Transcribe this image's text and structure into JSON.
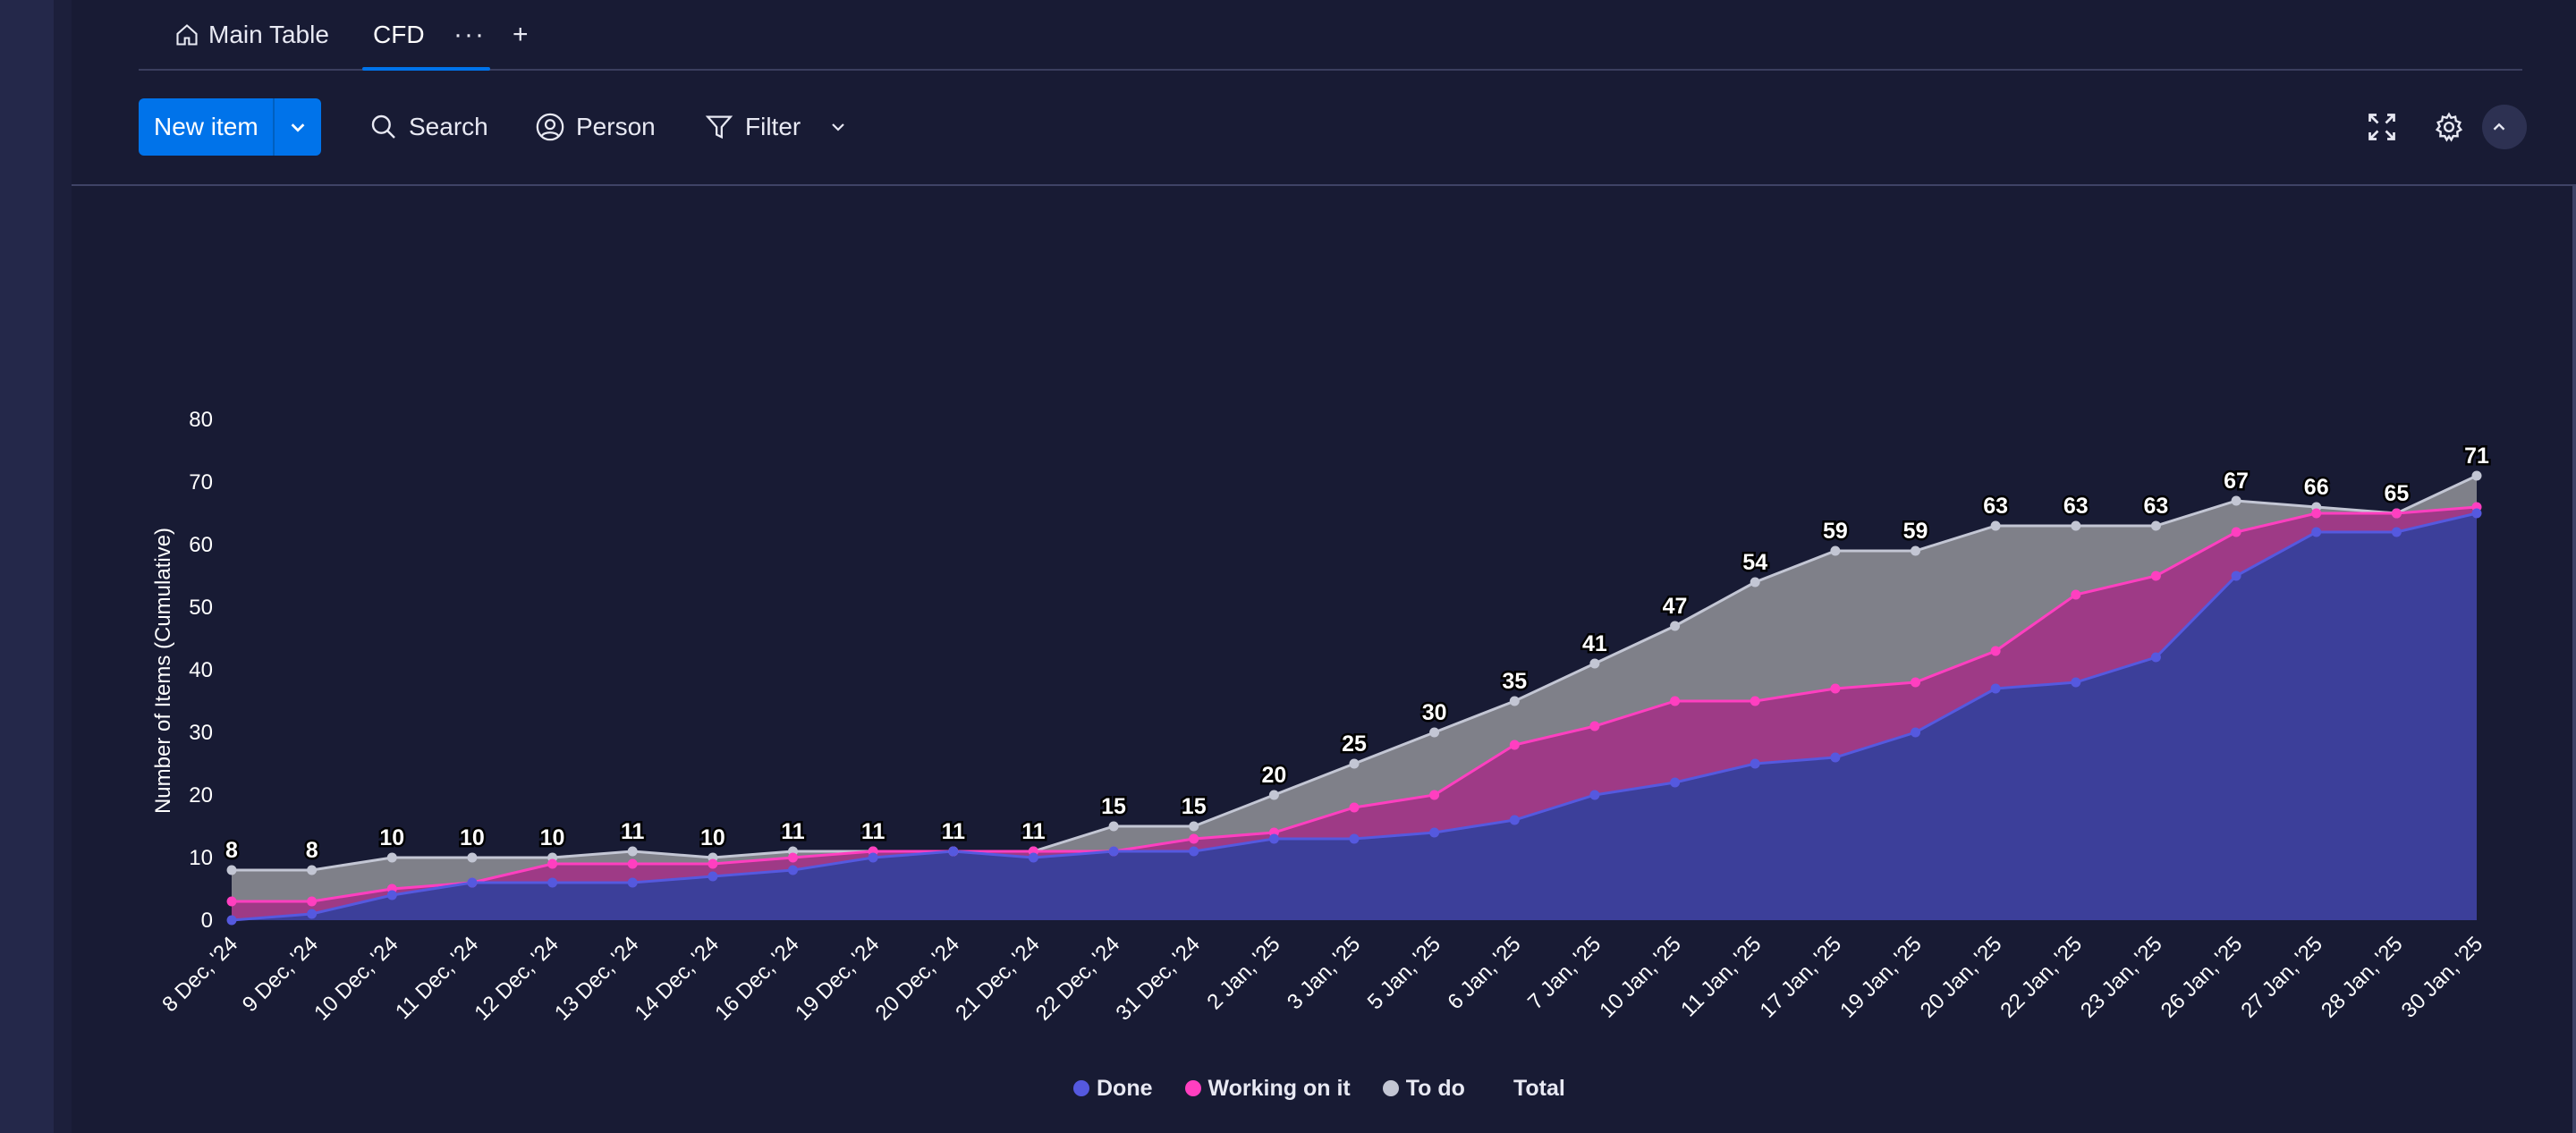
{
  "tabs": {
    "main_table": "Main Table",
    "cfd": "CFD",
    "more": "···",
    "add": "+"
  },
  "toolbar": {
    "new_item": "New item",
    "search": "Search",
    "person": "Person",
    "filter": "Filter"
  },
  "colors": {
    "done": "#5559df",
    "working": "#ff3fc0",
    "todo": "#c3c6d4",
    "accent": "#0073ea"
  },
  "chart_data": {
    "type": "area",
    "ylabel": "Number of Items (Cumulative)",
    "ylim": [
      0,
      80
    ],
    "yticks": [
      0,
      10,
      20,
      30,
      40,
      50,
      60,
      70,
      80
    ],
    "categories": [
      "8 Dec, '24",
      "9 Dec, '24",
      "10 Dec, '24",
      "11 Dec, '24",
      "12 Dec, '24",
      "13 Dec, '24",
      "14 Dec, '24",
      "16 Dec, '24",
      "19 Dec, '24",
      "20 Dec, '24",
      "21 Dec, '24",
      "22 Dec, '24",
      "31 Dec, '24",
      "2 Jan, '25",
      "3 Jan, '25",
      "5 Jan, '25",
      "6 Jan, '25",
      "7 Jan, '25",
      "10 Jan, '25",
      "11 Jan, '25",
      "17 Jan, '25",
      "19 Jan, '25",
      "20 Jan, '25",
      "22 Jan, '25",
      "23 Jan, '25",
      "26 Jan, '25",
      "27 Jan, '25",
      "28 Jan, '25",
      "30 Jan, '25"
    ],
    "series": [
      {
        "name": "Done",
        "values": [
          0,
          1,
          4,
          6,
          6,
          6,
          7,
          8,
          10,
          11,
          10,
          11,
          11,
          13,
          13,
          14,
          16,
          20,
          22,
          25,
          26,
          30,
          37,
          38,
          42,
          55,
          62,
          62,
          65
        ]
      },
      {
        "name": "Working on it",
        "values": [
          3,
          3,
          5,
          6,
          9,
          9,
          9,
          10,
          11,
          11,
          11,
          11,
          13,
          14,
          18,
          20,
          28,
          31,
          35,
          35,
          37,
          38,
          43,
          52,
          55,
          62,
          65,
          65,
          66
        ]
      },
      {
        "name": "To do",
        "values": [
          8,
          8,
          10,
          10,
          10,
          11,
          10,
          11,
          11,
          11,
          11,
          15,
          15,
          20,
          25,
          30,
          35,
          41,
          47,
          54,
          59,
          59,
          63,
          63,
          63,
          67,
          66,
          65,
          71
        ]
      }
    ],
    "total_labels": [
      8,
      8,
      10,
      10,
      10,
      11,
      10,
      11,
      11,
      11,
      11,
      15,
      15,
      20,
      25,
      30,
      35,
      41,
      47,
      54,
      59,
      59,
      63,
      63,
      63,
      67,
      66,
      65,
      71
    ],
    "legend": [
      "Done",
      "Working on it",
      "To do",
      "Total"
    ],
    "legend_position": "bottom",
    "grid": false
  }
}
